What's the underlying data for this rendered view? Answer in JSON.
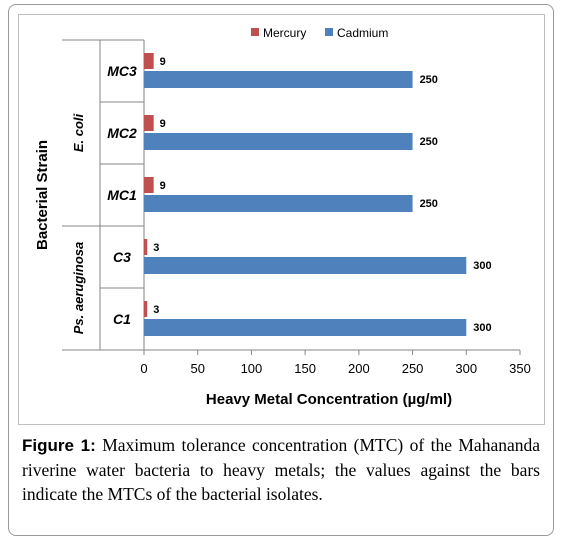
{
  "chart_data": {
    "type": "bar",
    "orientation": "horizontal",
    "categories": [
      "MC3",
      "MC2",
      "MC1",
      "C3",
      "C1"
    ],
    "groups": [
      {
        "label": "E. coli",
        "categories": [
          "MC3",
          "MC2",
          "MC1"
        ]
      },
      {
        "label": "Ps. aeruginosa",
        "categories": [
          "C3",
          "C1"
        ]
      }
    ],
    "series": [
      {
        "name": "Mercury",
        "color": "#c0504d",
        "values": [
          9,
          9,
          9,
          3,
          3
        ]
      },
      {
        "name": "Cadmium",
        "color": "#4f81bd",
        "values": [
          250,
          250,
          250,
          300,
          300
        ]
      }
    ],
    "xlabel": "Heavy Metal Concentration (µg/ml)",
    "ylabel": "Bacterial Strain",
    "xlim": [
      0,
      350
    ],
    "xticks": [
      0,
      50,
      100,
      150,
      200,
      250,
      300,
      350
    ],
    "legend_position": "top",
    "grid": false
  },
  "caption": {
    "label": "Figure 1:",
    "text": "Maximum tolerance concentration (MTC) of the Mahananda riverine water bacteria to heavy metals; the values against the bars indicate the MTCs of the bacterial isolates."
  }
}
